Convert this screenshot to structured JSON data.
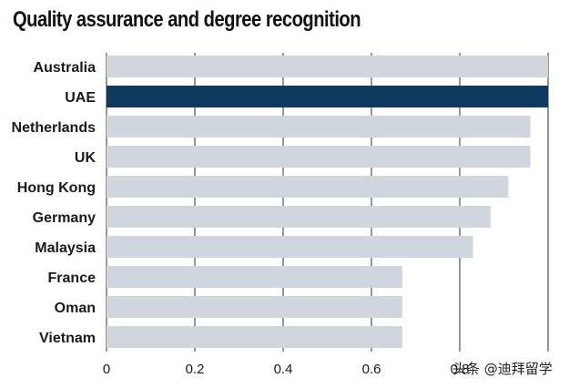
{
  "chart_data": {
    "type": "bar",
    "orientation": "horizontal",
    "title": "Quality assurance and degree recognition",
    "categories": [
      "Australia",
      "UAE",
      "Netherlands",
      "UK",
      "Hong Kong",
      "Germany",
      "Malaysia",
      "France",
      "Oman",
      "Vietnam"
    ],
    "values": [
      1.0,
      1.0,
      0.96,
      0.96,
      0.91,
      0.87,
      0.83,
      0.67,
      0.67,
      0.67
    ],
    "highlight": "UAE",
    "xlim": [
      0,
      1.0
    ],
    "xticks": [
      0,
      0.2,
      0.4,
      0.6,
      0.8
    ],
    "xtick_labels": [
      "0",
      "0.2",
      "0.4",
      "0.6",
      "0.8"
    ],
    "xlabel": "",
    "ylabel": "",
    "grid": true,
    "colors": {
      "bar": "#d0d6de",
      "highlight": "#0e3a5f",
      "grid": "#2f2f2f"
    }
  },
  "watermark": "头条 @迪拜留学"
}
